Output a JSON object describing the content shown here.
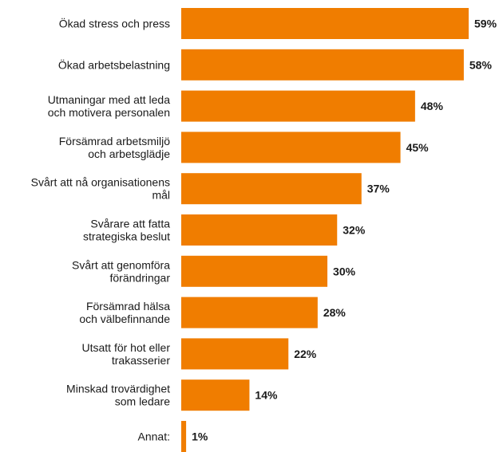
{
  "chart_data": {
    "type": "bar",
    "orientation": "horizontal",
    "categories": [
      [
        "Ökad stress och press"
      ],
      [
        "Ökad arbetsbelastning"
      ],
      [
        "Utmaningar med att leda",
        "och motivera personalen"
      ],
      [
        "Försämrad arbetsmiljö",
        "och arbetsglädje"
      ],
      [
        "Svårt att nå organisationens",
        "mål"
      ],
      [
        "Svårare att fatta",
        "strategiska beslut"
      ],
      [
        "Svårt att genomföra",
        "förändringar"
      ],
      [
        "Försämrad hälsa",
        "och välbefinnande"
      ],
      [
        "Utsatt för hot eller",
        "trakasserier"
      ],
      [
        "Minskad trovärdighet",
        "som ledare"
      ],
      [
        "Annat:"
      ]
    ],
    "values": [
      59,
      58,
      48,
      45,
      37,
      32,
      30,
      28,
      22,
      14,
      1
    ],
    "value_labels": [
      "59%",
      "58%",
      "48%",
      "45%",
      "37%",
      "32%",
      "30%",
      "28%",
      "22%",
      "14%",
      "1%"
    ],
    "title": "",
    "xlabel": "",
    "ylabel": "",
    "xlim": [
      0,
      59
    ],
    "grid": false,
    "legend": "none",
    "colors": {
      "bar": "#F07D00",
      "text": "#1a1a1a",
      "background": "#ffffff"
    }
  }
}
